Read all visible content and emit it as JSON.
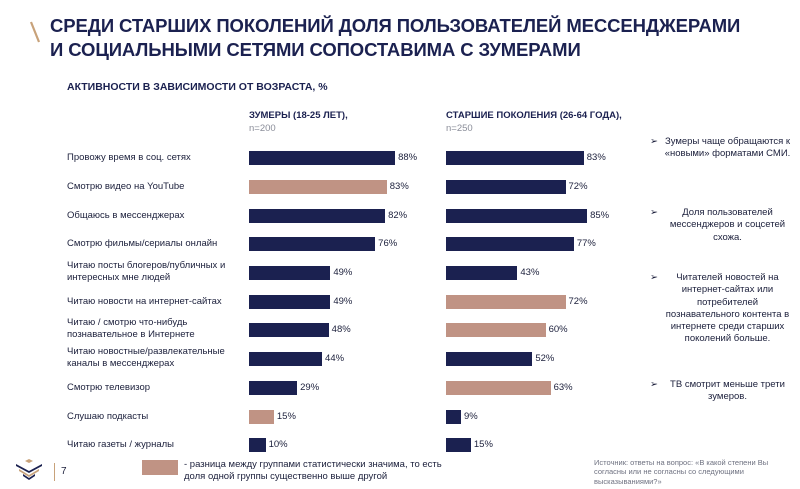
{
  "title": "СРЕДИ СТАРШИХ ПОКОЛЕНИЙ ДОЛЯ ПОЛЬЗОВАТЕЛЕЙ МЕССЕНДЖЕРАМИ И СОЦИАЛЬНЫМИ СЕТЯМИ СОПОСТАВИМА С ЗУМЕРАМИ",
  "colors": {
    "base": "#1b2150",
    "significant": "#c09384",
    "accent": "#c8a27a"
  },
  "chart_data": {
    "type": "bar",
    "orientation": "horizontal",
    "title": "АКТИВНОСТИ В ЗАВИСИМОСТИ ОТ ВОЗРАСТА, %",
    "xlim": [
      0,
      100
    ],
    "grid": false,
    "categories": [
      "Провожу время в соц. сетях",
      "Смотрю видео на YouTube",
      "Общаюсь в мессенджерах",
      "Смотрю фильмы/сериалы онлайн",
      "Читаю посты блогеров/публичных и интересных мне людей",
      "Читаю новости на интернет-сайтах",
      "Читаю / смотрю что-нибудь познавательное в Интернете",
      "Читаю новостные/развлекательные каналы в мессенджерах",
      "Смотрю телевизор",
      "Слушаю подкасты",
      "Читаю газеты / журналы"
    ],
    "series": [
      {
        "name": "ЗУМЕРЫ (18-25 ЛЕТ),",
        "n": "n=200",
        "values": [
          88,
          83,
          82,
          76,
          49,
          49,
          48,
          44,
          29,
          15,
          10
        ],
        "labels": [
          "88%",
          "83%",
          "82%",
          "76%",
          "49%",
          "49%",
          "48%",
          "44%",
          "29%",
          "15%",
          "10%"
        ],
        "significant": [
          false,
          true,
          false,
          false,
          false,
          false,
          false,
          false,
          false,
          true,
          false
        ]
      },
      {
        "name": "СТАРШИЕ ПОКОЛЕНИЯ (26-64 ГОДА),",
        "n": "n=250",
        "values": [
          83,
          72,
          85,
          77,
          43,
          72,
          60,
          52,
          63,
          9,
          15
        ],
        "labels": [
          "83%",
          "72%",
          "85%",
          "77%",
          "43%",
          "72%",
          "60%",
          "52%",
          "63%",
          "9%",
          "15%"
        ],
        "significant": [
          false,
          false,
          false,
          false,
          false,
          true,
          true,
          false,
          true,
          false,
          false
        ]
      }
    ]
  },
  "notes": [
    {
      "arrow": "➢",
      "text": "Зумеры чаще обращаются к «новыми» форматами СМИ."
    },
    {
      "arrow": "➢",
      "text": "Доля пользователей мессенджеров и соцсетей схожа."
    },
    {
      "arrow": "➢",
      "text": "Читателей новостей на интернет-сайтах или потребителей познавательного контента в интернете среди старших поколений больше."
    },
    {
      "arrow": "➢",
      "text": "ТВ смотрит меньше трети зумеров."
    }
  ],
  "legend": {
    "text": "- разница между группами статистически значима, то есть доля одной группы существенно выше другой"
  },
  "source": "Источник: ответы на вопрос: «В какой степени Вы согласны или не согласны со следующими высказываниями?»",
  "page_number": "7",
  "logo_icon": "company-logo-icon"
}
